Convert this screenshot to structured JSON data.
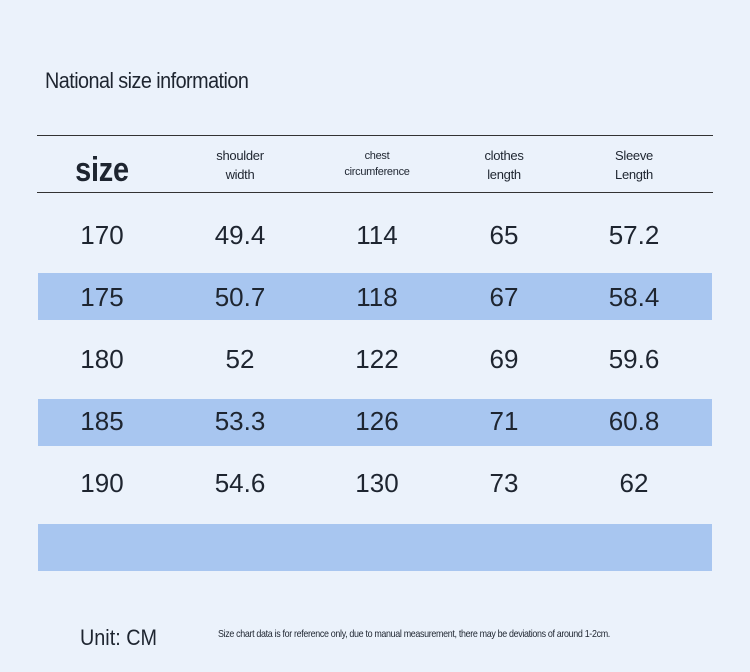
{
  "header": {
    "title": "National size information"
  },
  "table": {
    "columns": [
      [
        "size"
      ],
      [
        "shoulder",
        "width"
      ],
      [
        "chest",
        "circumference"
      ],
      [
        "clothes",
        "length"
      ],
      [
        "Sleeve",
        "Length"
      ]
    ],
    "rows": [
      [
        170,
        49.4,
        114,
        65,
        57.2
      ],
      [
        175,
        50.7,
        118,
        67,
        58.4
      ],
      [
        180,
        52,
        122,
        69,
        59.6
      ],
      [
        185,
        53.3,
        126,
        71,
        60.8
      ],
      [
        190,
        54.6,
        130,
        73,
        62
      ]
    ]
  },
  "footer": {
    "unit": "Unit: CM",
    "note": "Size chart data is for reference only, due to manual measurement, there may be deviations of around 1-2cm."
  }
}
